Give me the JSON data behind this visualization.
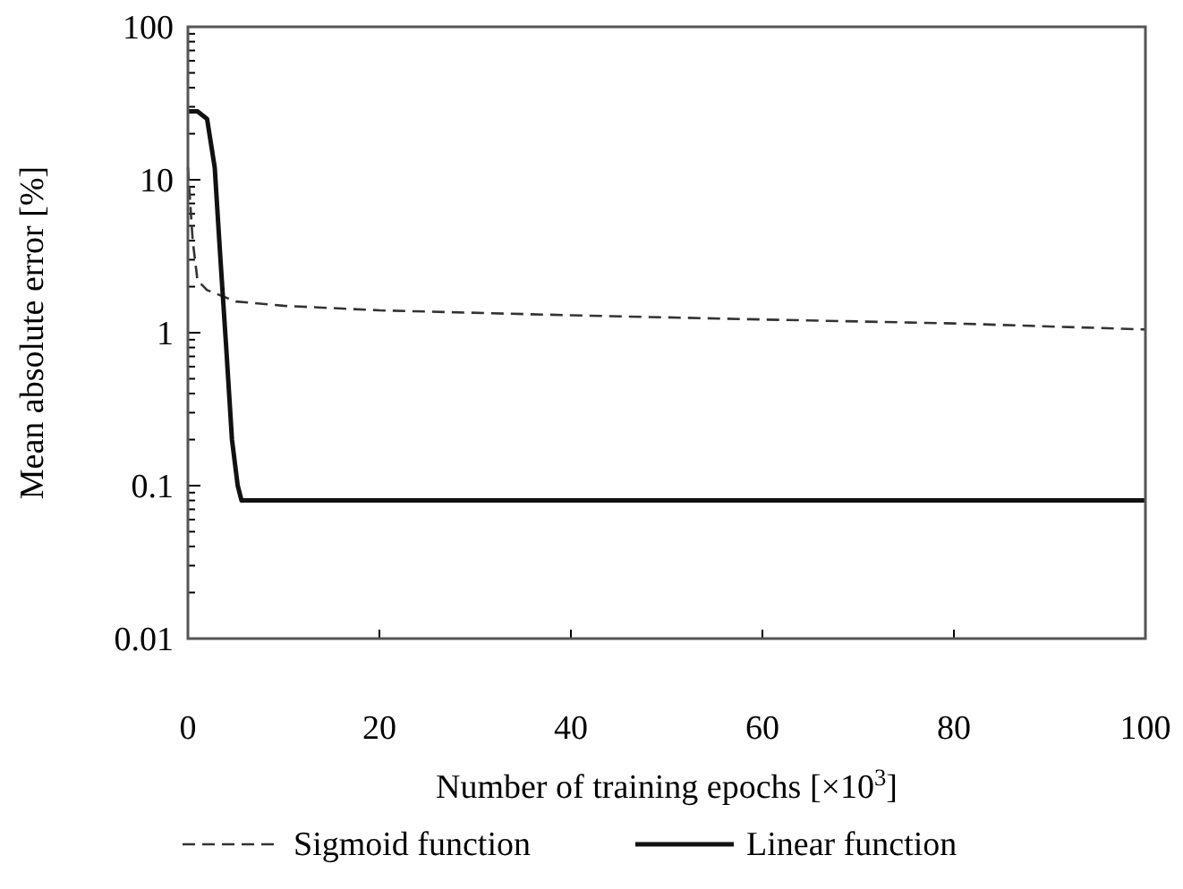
{
  "chart_data": {
    "type": "line",
    "xlabel": "Number of training epochs [×10$^{3}$]",
    "ylabel": "Mean absolute error [%]",
    "log": "y",
    "xlim": [
      0,
      100
    ],
    "xticks": [
      0,
      20,
      40,
      60,
      80,
      100
    ],
    "ylim": [
      0.01,
      100
    ],
    "yticks": [
      0.01,
      0.1,
      1,
      10,
      100
    ],
    "grid": false,
    "legend": "bottom",
    "series": [
      {
        "name": "Sigmoid function",
        "color": "#333333",
        "line_style": "dashed",
        "x": [
          0,
          0.5,
          1,
          2,
          5,
          10,
          20,
          40,
          60,
          80,
          100
        ],
        "values": [
          12,
          4,
          2.2,
          1.9,
          1.6,
          1.5,
          1.4,
          1.3,
          1.22,
          1.15,
          1.05
        ]
      },
      {
        "name": "Linear function",
        "color": "#111111",
        "line_style": "solid",
        "x": [
          0,
          1,
          2,
          2.8,
          3.4,
          4,
          4.6,
          5.2,
          5.6,
          100
        ],
        "values": [
          28,
          28,
          25,
          12,
          3,
          0.8,
          0.2,
          0.1,
          0.08,
          0.08
        ]
      }
    ]
  }
}
